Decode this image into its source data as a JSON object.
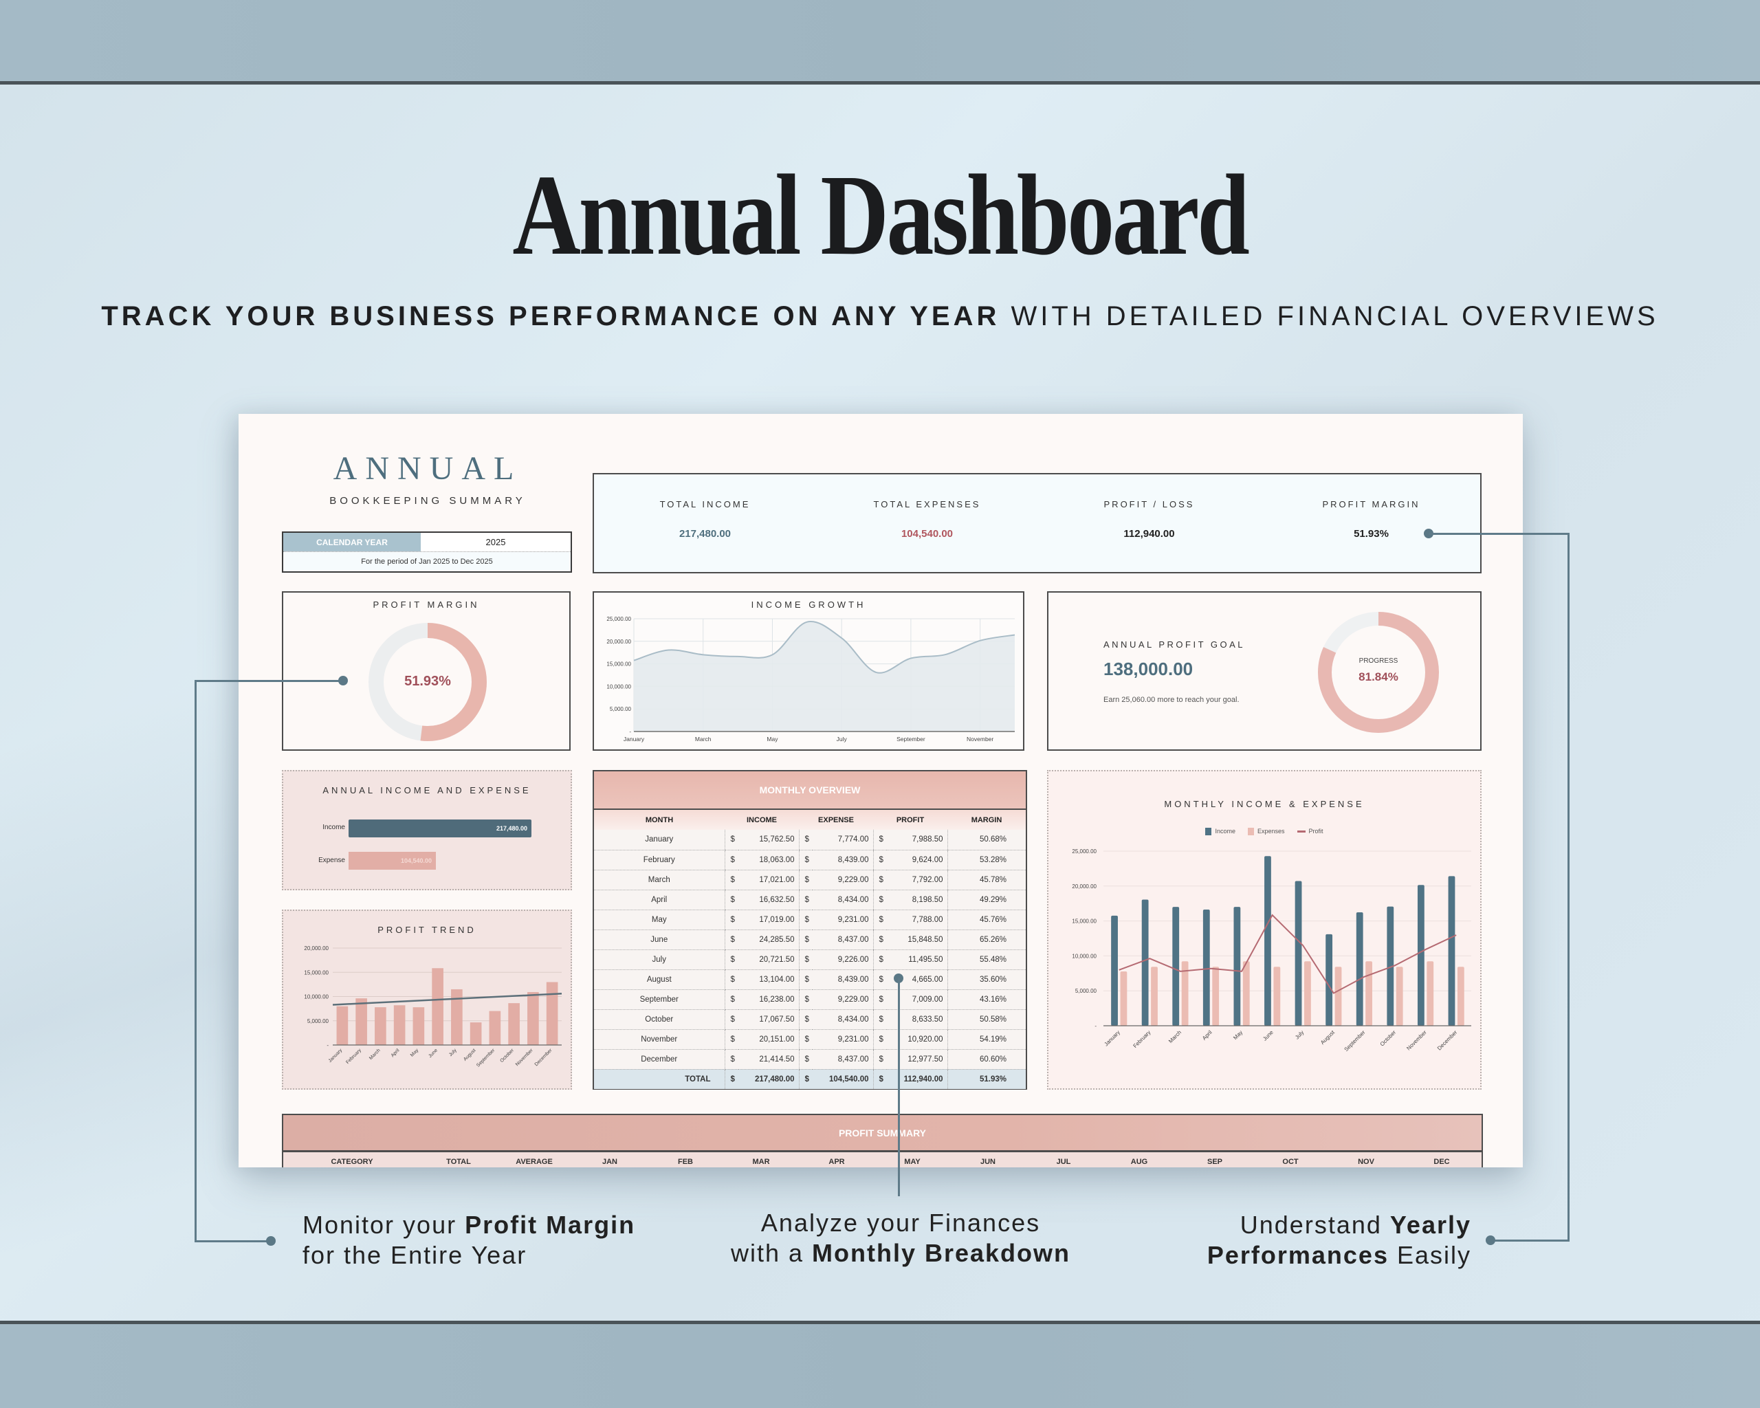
{
  "hero": {
    "title": "Annual Dashboard",
    "subtitle_bold": "TRACK YOUR BUSINESS PERFORMANCE ON ANY YEAR",
    "subtitle_light": "WITH DETAILED FINANCIAL OVERVIEWS"
  },
  "header": {
    "title": "ANNUAL",
    "subtitle": "BOOKKEEPING SUMMARY",
    "calendar_year_label": "CALENDAR YEAR",
    "calendar_year_value": "2025",
    "period_text": "For the period of Jan 2025 to Dec 2025"
  },
  "kpis": [
    {
      "label": "TOTAL INCOME",
      "value": "217,480.00",
      "color": "#4f6f7e"
    },
    {
      "label": "TOTAL EXPENSES",
      "value": "104,540.00",
      "color": "#b0565e"
    },
    {
      "label": "PROFIT / LOSS",
      "value": "112,940.00",
      "color": "#1c1c1c"
    },
    {
      "label": "PROFIT MARGIN",
      "value": "51.93%",
      "color": "#1c1c1c"
    }
  ],
  "profit_margin_panel": {
    "title": "PROFIT MARGIN",
    "value": "51.93%",
    "percent": 51.93
  },
  "income_growth_panel": {
    "title": "INCOME GROWTH"
  },
  "goal_panel": {
    "title": "ANNUAL PROFIT GOAL",
    "goal": "138,000.00",
    "note": "Earn 25,060.00 more to reach your goal.",
    "progress_label": "PROGRESS",
    "progress_value": "81.84%",
    "percent": 81.84
  },
  "annual_income_expense_panel": {
    "title": "ANNUAL INCOME AND EXPENSE",
    "bars": [
      {
        "label": "Income",
        "value": 217480,
        "display": "217,480.00",
        "color": "#4f6b7a"
      },
      {
        "label": "Expense",
        "value": 104540,
        "display": "104,540.00",
        "color": "#e2aea6"
      }
    ]
  },
  "profit_trend_panel": {
    "title": "PROFIT TREND"
  },
  "monthly_overview": {
    "title": "MONTHLY OVERVIEW",
    "columns": [
      "MONTH",
      "INCOME",
      "EXPENSE",
      "PROFIT",
      "MARGIN"
    ],
    "currency": "$",
    "rows": [
      {
        "month": "January",
        "income": "15,762.50",
        "expense": "7,774.00",
        "profit": "7,988.50",
        "margin": "50.68%"
      },
      {
        "month": "February",
        "income": "18,063.00",
        "expense": "8,439.00",
        "profit": "9,624.00",
        "margin": "53.28%"
      },
      {
        "month": "March",
        "income": "17,021.00",
        "expense": "9,229.00",
        "profit": "7,792.00",
        "margin": "45.78%"
      },
      {
        "month": "April",
        "income": "16,632.50",
        "expense": "8,434.00",
        "profit": "8,198.50",
        "margin": "49.29%"
      },
      {
        "month": "May",
        "income": "17,019.00",
        "expense": "9,231.00",
        "profit": "7,788.00",
        "margin": "45.76%"
      },
      {
        "month": "June",
        "income": "24,285.50",
        "expense": "8,437.00",
        "profit": "15,848.50",
        "margin": "65.26%"
      },
      {
        "month": "July",
        "income": "20,721.50",
        "expense": "9,226.00",
        "profit": "11,495.50",
        "margin": "55.48%"
      },
      {
        "month": "August",
        "income": "13,104.00",
        "expense": "8,439.00",
        "profit": "4,665.00",
        "margin": "35.60%"
      },
      {
        "month": "September",
        "income": "16,238.00",
        "expense": "9,229.00",
        "profit": "7,009.00",
        "margin": "43.16%"
      },
      {
        "month": "October",
        "income": "17,067.50",
        "expense": "8,434.00",
        "profit": "8,633.50",
        "margin": "50.58%"
      },
      {
        "month": "November",
        "income": "20,151.00",
        "expense": "9,231.00",
        "profit": "10,920.00",
        "margin": "54.19%"
      },
      {
        "month": "December",
        "income": "21,414.50",
        "expense": "8,437.00",
        "profit": "12,977.50",
        "margin": "60.60%"
      }
    ],
    "total": {
      "label": "TOTAL",
      "income": "217,480.00",
      "expense": "104,540.00",
      "profit": "112,940.00",
      "margin": "51.93%"
    }
  },
  "monthly_chart_panel": {
    "title": "MONTHLY INCOME & EXPENSE",
    "legend": [
      {
        "label": "Income",
        "color": "#4f7385"
      },
      {
        "label": "Expenses",
        "color": "#ebbcb3"
      },
      {
        "label": "Profit",
        "color": "#b56a72"
      }
    ]
  },
  "profit_summary": {
    "title": "PROFIT SUMMARY",
    "columns": [
      "CATEGORY",
      "TOTAL",
      "AVERAGE",
      "JAN",
      "FEB",
      "MAR",
      "APR",
      "MAY",
      "JUN",
      "JUL",
      "AUG",
      "SEP",
      "OCT",
      "NOV",
      "DEC"
    ]
  },
  "callouts": [
    {
      "pre": "Monitor your ",
      "bold": "Profit Margin",
      "post": "",
      "line2_pre": "for the Entire Year",
      "line2_bold": "",
      "line2_post": ""
    },
    {
      "pre": "Analyze your Finances",
      "bold": "",
      "post": "",
      "line2_pre": "with a ",
      "line2_bold": "Monthly Breakdown",
      "line2_post": ""
    },
    {
      "pre": "Understand ",
      "bold": "Yearly",
      "post": "",
      "line2_pre": "",
      "line2_bold": "Performances",
      "line2_post": " Easily"
    }
  ],
  "chart_data": [
    {
      "type": "pie",
      "title": "PROFIT MARGIN",
      "categories": [
        "Profit",
        "Remaining"
      ],
      "values": [
        51.93,
        48.07
      ],
      "center_label": "51.93%"
    },
    {
      "type": "area",
      "title": "INCOME GROWTH",
      "x": [
        "January",
        "February",
        "March",
        "April",
        "May",
        "June",
        "July",
        "August",
        "September",
        "October",
        "November",
        "December"
      ],
      "x_tick_labels": [
        "January",
        "March",
        "May",
        "July",
        "September",
        "November"
      ],
      "values": [
        15762.5,
        18063,
        17021,
        16632.5,
        17019,
        24285.5,
        20721.5,
        13104,
        16238,
        17067.5,
        20151,
        21414.5
      ],
      "ylim": [
        0,
        25000
      ],
      "y_ticks": [
        "-",
        "5,000.00",
        "10,000.00",
        "15,000.00",
        "20,000.00",
        "25,000.00"
      ],
      "grid": true
    },
    {
      "type": "pie",
      "title": "ANNUAL PROFIT GOAL",
      "categories": [
        "Progress",
        "Remaining"
      ],
      "values": [
        81.84,
        18.16
      ],
      "center_label": "PROGRESS 81.84%"
    },
    {
      "type": "bar",
      "title": "ANNUAL INCOME AND EXPENSE",
      "orientation": "horizontal",
      "categories": [
        "Income",
        "Expense"
      ],
      "values": [
        217480,
        104540
      ]
    },
    {
      "type": "bar",
      "title": "PROFIT TREND",
      "categories": [
        "January",
        "February",
        "March",
        "April",
        "May",
        "June",
        "July",
        "August",
        "September",
        "October",
        "November",
        "December"
      ],
      "values": [
        7988.5,
        9624,
        7792,
        8198.5,
        7788,
        15848.5,
        11495.5,
        4665,
        7009,
        8633.5,
        10920,
        12977.5
      ],
      "trendline": {
        "start": 8300,
        "end": 10600
      },
      "ylim": [
        0,
        20000
      ],
      "y_ticks": [
        "-",
        "5,000.00",
        "10,000.00",
        "15,000.00",
        "20,000.00"
      ]
    },
    {
      "type": "bar",
      "title": "MONTHLY INCOME & EXPENSE",
      "categories": [
        "January",
        "February",
        "March",
        "April",
        "May",
        "June",
        "July",
        "August",
        "September",
        "October",
        "November",
        "December"
      ],
      "series": [
        {
          "name": "Income",
          "type": "bar",
          "values": [
            15762.5,
            18063,
            17021,
            16632.5,
            17019,
            24285.5,
            20721.5,
            13104,
            16238,
            17067.5,
            20151,
            21414.5
          ]
        },
        {
          "name": "Expenses",
          "type": "bar",
          "values": [
            7774,
            8439,
            9229,
            8434,
            9231,
            8437,
            9226,
            8439,
            9229,
            8434,
            9231,
            8437
          ]
        },
        {
          "name": "Profit",
          "type": "line",
          "values": [
            7988.5,
            9624,
            7792,
            8198.5,
            7788,
            15848.5,
            11495.5,
            4665,
            7009,
            8633.5,
            10920,
            12977.5
          ]
        }
      ],
      "ylim": [
        0,
        25000
      ],
      "y_ticks": [
        "-",
        "5,000.00",
        "10,000.00",
        "15,000.00",
        "20,000.00",
        "25,000.00"
      ],
      "legend_position": "top"
    }
  ]
}
